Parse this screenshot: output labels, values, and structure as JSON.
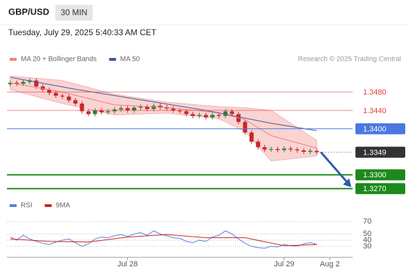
{
  "header": {
    "symbol": "GBP/USD",
    "interval": "30 MIN",
    "timestamp": "Tuesday, July 29, 2025 5:40:33 AM CET"
  },
  "chart_data": [
    {
      "type": "candlestick",
      "source": "Research © 2025 Trading Central",
      "xlim": [
        -0.5,
        52.5
      ],
      "ylim": [
        1.3245,
        1.3545
      ],
      "grid": false,
      "up_color": "#2e7d32",
      "down_color": "#c62828",
      "candles": {
        "open": [
          1.3497,
          1.35,
          1.3498,
          1.3502,
          1.3505,
          1.3492,
          1.3485,
          1.3478,
          1.3472,
          1.347,
          1.3462,
          1.3455,
          1.3438,
          1.3432,
          1.344,
          1.3436,
          1.3438,
          1.3442,
          1.3445,
          1.344,
          1.3446,
          1.3448,
          1.3443,
          1.345,
          1.3447,
          1.3444,
          1.344,
          1.3438,
          1.3432,
          1.3428,
          1.343,
          1.3425,
          1.343,
          1.3428,
          1.3438,
          1.3432,
          1.3415,
          1.3392,
          1.3372,
          1.336,
          1.3355,
          1.3356,
          1.3354,
          1.3357,
          1.3355,
          1.3353,
          1.335,
          1.3352
        ],
        "high": [
          1.3505,
          1.3505,
          1.3507,
          1.351,
          1.351,
          1.3497,
          1.349,
          1.3483,
          1.3477,
          1.3475,
          1.3467,
          1.346,
          1.3443,
          1.3445,
          1.3445,
          1.3443,
          1.3447,
          1.345,
          1.345,
          1.3451,
          1.3453,
          1.3453,
          1.3455,
          1.3455,
          1.3452,
          1.3449,
          1.3445,
          1.3443,
          1.3437,
          1.3435,
          1.3435,
          1.3435,
          1.3435,
          1.3443,
          1.3443,
          1.3437,
          1.342,
          1.3397,
          1.3377,
          1.3365,
          1.3361,
          1.3361,
          1.3362,
          1.3362,
          1.336,
          1.3358,
          1.3357,
          1.3357
        ],
        "low": [
          1.3492,
          1.3493,
          1.3493,
          1.3497,
          1.3487,
          1.348,
          1.3473,
          1.3467,
          1.3465,
          1.3457,
          1.345,
          1.3433,
          1.3427,
          1.3427,
          1.3431,
          1.3431,
          1.3433,
          1.3437,
          1.3435,
          1.3435,
          1.3441,
          1.3438,
          1.3438,
          1.3442,
          1.3439,
          1.3435,
          1.3433,
          1.3427,
          1.3423,
          1.3423,
          1.342,
          1.342,
          1.3423,
          1.3423,
          1.3427,
          1.341,
          1.3387,
          1.3367,
          1.3355,
          1.335,
          1.335,
          1.3349,
          1.3349,
          1.335,
          1.3348,
          1.3345,
          1.3345,
          1.3344
        ],
        "close": [
          1.35,
          1.3498,
          1.3502,
          1.3505,
          1.3492,
          1.3485,
          1.3478,
          1.3472,
          1.347,
          1.3462,
          1.3455,
          1.3438,
          1.3432,
          1.344,
          1.3436,
          1.3438,
          1.3442,
          1.3445,
          1.344,
          1.3446,
          1.3448,
          1.3443,
          1.345,
          1.3447,
          1.3444,
          1.344,
          1.3438,
          1.3432,
          1.3428,
          1.343,
          1.3425,
          1.343,
          1.3428,
          1.3438,
          1.3432,
          1.3415,
          1.3392,
          1.3372,
          1.336,
          1.3355,
          1.3356,
          1.3354,
          1.3357,
          1.3355,
          1.3353,
          1.335,
          1.3352,
          1.3349
        ]
      },
      "series": [
        {
          "name": "MA 20 + Bollinger Bands",
          "color": "#f08080",
          "x": [
            0,
            8,
            16,
            24,
            32,
            36,
            40,
            47
          ],
          "values": [
            1.35,
            1.348,
            1.3452,
            1.3446,
            1.3435,
            1.342,
            1.3385,
            1.3358
          ],
          "upper": [
            1.3515,
            1.3505,
            1.3475,
            1.3458,
            1.3448,
            1.3446,
            1.344,
            1.3375
          ],
          "lower": [
            1.3485,
            1.3455,
            1.343,
            1.3434,
            1.3422,
            1.3394,
            1.333,
            1.3341
          ]
        },
        {
          "name": "MA 50",
          "color": "#3b5998",
          "x": [
            0,
            10,
            20,
            30,
            40,
            47
          ],
          "values": [
            1.3512,
            1.3486,
            1.3463,
            1.344,
            1.3412,
            1.3396
          ]
        }
      ],
      "levels": [
        {
          "value": 1.348,
          "label": "1.3480",
          "color": "#e53935",
          "filled": false,
          "line": "solid"
        },
        {
          "value": 1.344,
          "label": "1.3440",
          "color": "#e53935",
          "filled": false,
          "line": "solid"
        },
        {
          "value": 1.34,
          "label": "1.3400",
          "color": "#4a78e0",
          "filled": true,
          "line": "solid"
        },
        {
          "value": 1.3349,
          "color": "#333333",
          "filled": true,
          "line": "dotted"
        },
        {
          "value": 1.33,
          "label": "1.3300",
          "color": "#1b8a1b",
          "filled": true,
          "line": "solid"
        },
        {
          "value": 1.327,
          "label": "1.3270",
          "color": "#1b8a1b",
          "filled": true,
          "line": "solid"
        }
      ]
    },
    {
      "type": "line",
      "xlim": [
        -0.5,
        52.5
      ],
      "ylim": [
        10,
        88
      ],
      "yticks": [
        70,
        50,
        40,
        30
      ],
      "grid": true,
      "xticks": [
        {
          "value": 18,
          "label": "Jul 28"
        },
        {
          "value": 42,
          "label": "Jul 29"
        },
        {
          "value": 49,
          "label": "Aug 2"
        }
      ],
      "series": [
        {
          "name": "RSI",
          "color": "#5b7fd6",
          "values": [
            45,
            40,
            48,
            42,
            38,
            35,
            33,
            37,
            40,
            42,
            36,
            30,
            34,
            42,
            45,
            44,
            47,
            49,
            46,
            50,
            52,
            48,
            55,
            50,
            47,
            44,
            43,
            38,
            36,
            40,
            38,
            45,
            48,
            55,
            50,
            42,
            35,
            30,
            28,
            27,
            30,
            29,
            33,
            31,
            30,
            34,
            36,
            33
          ]
        },
        {
          "name": "9MA",
          "color": "#cc2222",
          "x": [
            0,
            6,
            12,
            18,
            24,
            30,
            36,
            42,
            47
          ],
          "values": [
            42,
            38,
            37,
            45,
            49,
            44,
            44,
            31,
            33
          ]
        }
      ]
    }
  ]
}
